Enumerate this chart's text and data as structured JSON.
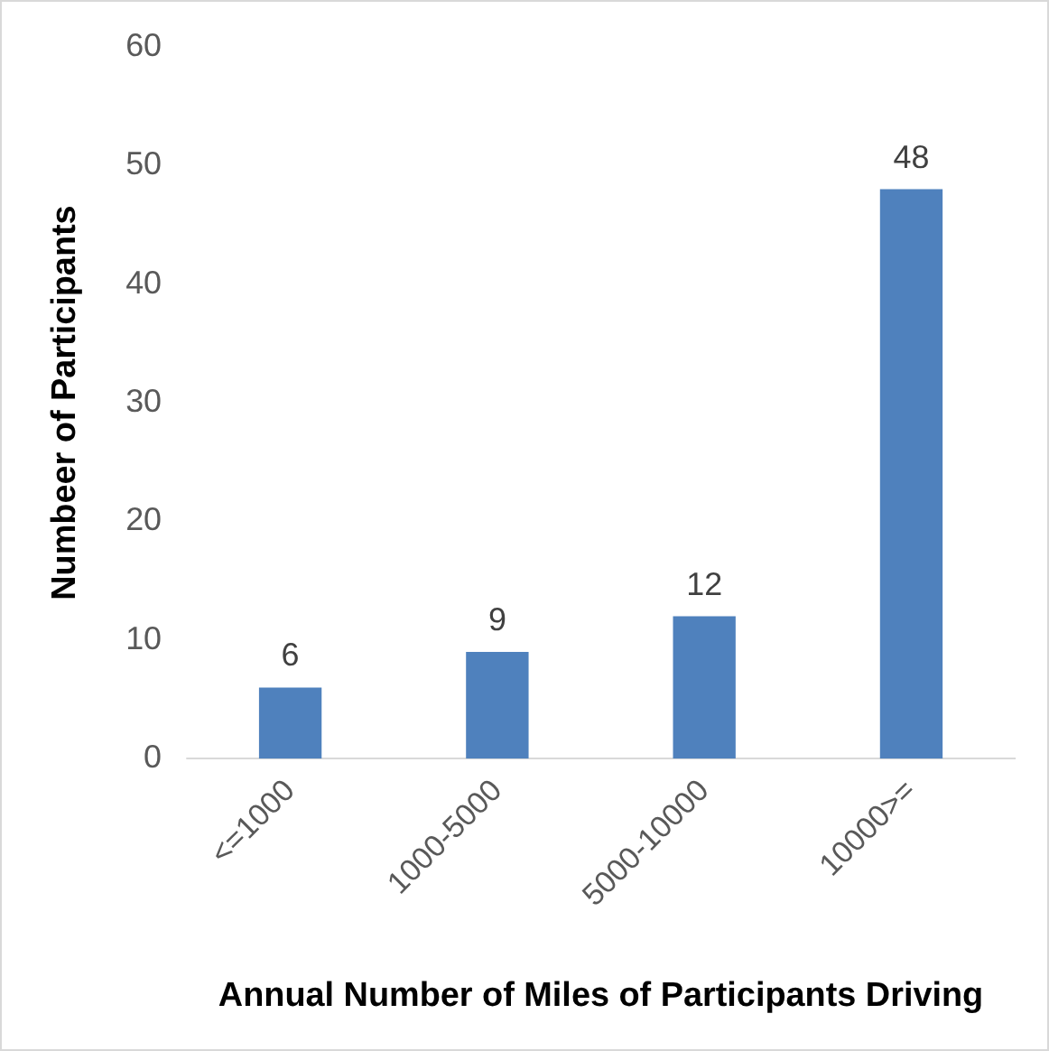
{
  "chart_data": {
    "type": "bar",
    "xlabel": "Annual Number of Miles of Participants Driving",
    "ylabel": "Numbeer of Participants",
    "categories": [
      "<=1000",
      "1000-5000",
      "5000-10000",
      "10000>="
    ],
    "values": [
      6,
      9,
      12,
      48
    ],
    "color": "#4f81bd",
    "ylim": [
      0,
      60
    ],
    "yticks": [
      0,
      10,
      20,
      30,
      40,
      50,
      60
    ],
    "grid": false,
    "legend": false,
    "data_labels": true
  }
}
